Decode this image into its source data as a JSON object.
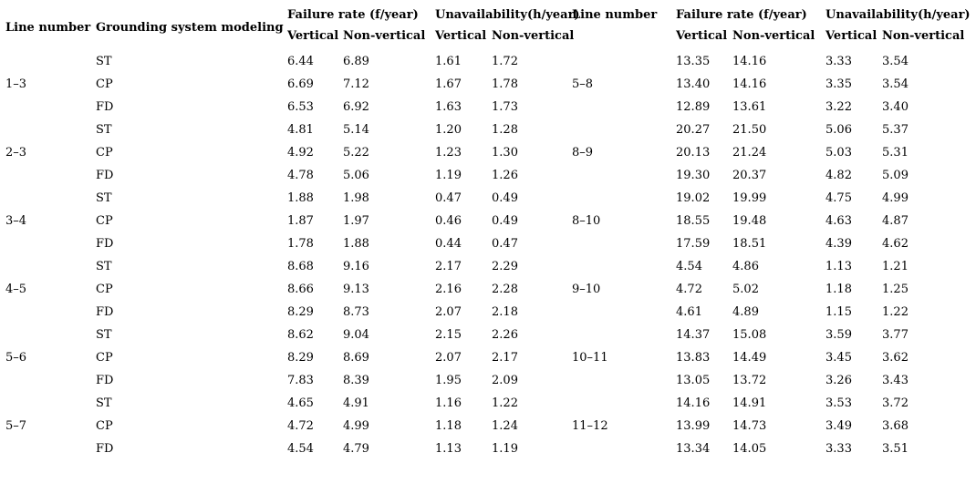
{
  "table": {
    "headers": {
      "line_number": "Line number",
      "grounding": "Grounding system modeling",
      "failure_rate": "Failure rate (f/year)",
      "unavailability": "Unavailability(h/year)",
      "vertical": "Vertical",
      "non_vertical": "Non-vertical"
    },
    "groups": [
      {
        "left_line": "1–3",
        "right_line": "5–8",
        "rows": [
          {
            "model": "ST",
            "left": [
              "6.44",
              "6.89",
              "1.61",
              "1.72"
            ],
            "right": [
              "13.35",
              "14.16",
              "3.33",
              "3.54"
            ]
          },
          {
            "model": "CP",
            "left": [
              "6.69",
              "7.12",
              "1.67",
              "1.78"
            ],
            "right": [
              "13.40",
              "14.16",
              "3.35",
              "3.54"
            ]
          },
          {
            "model": "FD",
            "left": [
              "6.53",
              "6.92",
              "1.63",
              "1.73"
            ],
            "right": [
              "12.89",
              "13.61",
              "3.22",
              "3.40"
            ]
          }
        ]
      },
      {
        "left_line": "2–3",
        "right_line": "8–9",
        "rows": [
          {
            "model": "ST",
            "left": [
              "4.81",
              "5.14",
              "1.20",
              "1.28"
            ],
            "right": [
              "20.27",
              "21.50",
              "5.06",
              "5.37"
            ]
          },
          {
            "model": "CP",
            "left": [
              "4.92",
              "5.22",
              "1.23",
              "1.30"
            ],
            "right": [
              "20.13",
              "21.24",
              "5.03",
              "5.31"
            ]
          },
          {
            "model": "FD",
            "left": [
              "4.78",
              "5.06",
              "1.19",
              "1.26"
            ],
            "right": [
              "19.30",
              "20.37",
              "4.82",
              "5.09"
            ]
          }
        ]
      },
      {
        "left_line": "3–4",
        "right_line": "8–10",
        "rows": [
          {
            "model": "ST",
            "left": [
              "1.88",
              "1.98",
              "0.47",
              "0.49"
            ],
            "right": [
              "19.02",
              "19.99",
              "4.75",
              "4.99"
            ]
          },
          {
            "model": "CP",
            "left": [
              "1.87",
              "1.97",
              "0.46",
              "0.49"
            ],
            "right": [
              "18.55",
              "19.48",
              "4.63",
              "4.87"
            ]
          },
          {
            "model": "FD",
            "left": [
              "1.78",
              "1.88",
              "0.44",
              "0.47"
            ],
            "right": [
              "17.59",
              "18.51",
              "4.39",
              "4.62"
            ]
          }
        ]
      },
      {
        "left_line": "4–5",
        "right_line": "9–10",
        "rows": [
          {
            "model": "ST",
            "left": [
              "8.68",
              "9.16",
              "2.17",
              "2.29"
            ],
            "right": [
              "4.54",
              "4.86",
              "1.13",
              "1.21"
            ]
          },
          {
            "model": "CP",
            "left": [
              "8.66",
              "9.13",
              "2.16",
              "2.28"
            ],
            "right": [
              "4.72",
              "5.02",
              "1.18",
              "1.25"
            ]
          },
          {
            "model": "FD",
            "left": [
              "8.29",
              "8.73",
              "2.07",
              "2.18"
            ],
            "right": [
              "4.61",
              "4.89",
              "1.15",
              "1.22"
            ]
          }
        ]
      },
      {
        "left_line": "5–6",
        "right_line": "10–11",
        "rows": [
          {
            "model": "ST",
            "left": [
              "8.62",
              "9.04",
              "2.15",
              "2.26"
            ],
            "right": [
              "14.37",
              "15.08",
              "3.59",
              "3.77"
            ]
          },
          {
            "model": "CP",
            "left": [
              "8.29",
              "8.69",
              "2.07",
              "2.17"
            ],
            "right": [
              "13.83",
              "14.49",
              "3.45",
              "3.62"
            ]
          },
          {
            "model": "FD",
            "left": [
              "7.83",
              "8.39",
              "1.95",
              "2.09"
            ],
            "right": [
              "13.05",
              "13.72",
              "3.26",
              "3.43"
            ]
          }
        ]
      },
      {
        "left_line": "5–7",
        "right_line": "11–12",
        "rows": [
          {
            "model": "ST",
            "left": [
              "4.65",
              "4.91",
              "1.16",
              "1.22"
            ],
            "right": [
              "14.16",
              "14.91",
              "3.53",
              "3.72"
            ]
          },
          {
            "model": "CP",
            "left": [
              "4.72",
              "4.99",
              "1.18",
              "1.24"
            ],
            "right": [
              "13.99",
              "14.73",
              "3.49",
              "3.68"
            ]
          },
          {
            "model": "FD",
            "left": [
              "4.54",
              "4.79",
              "1.13",
              "1.19"
            ],
            "right": [
              "13.34",
              "14.05",
              "3.33",
              "3.51"
            ]
          }
        ]
      }
    ]
  }
}
